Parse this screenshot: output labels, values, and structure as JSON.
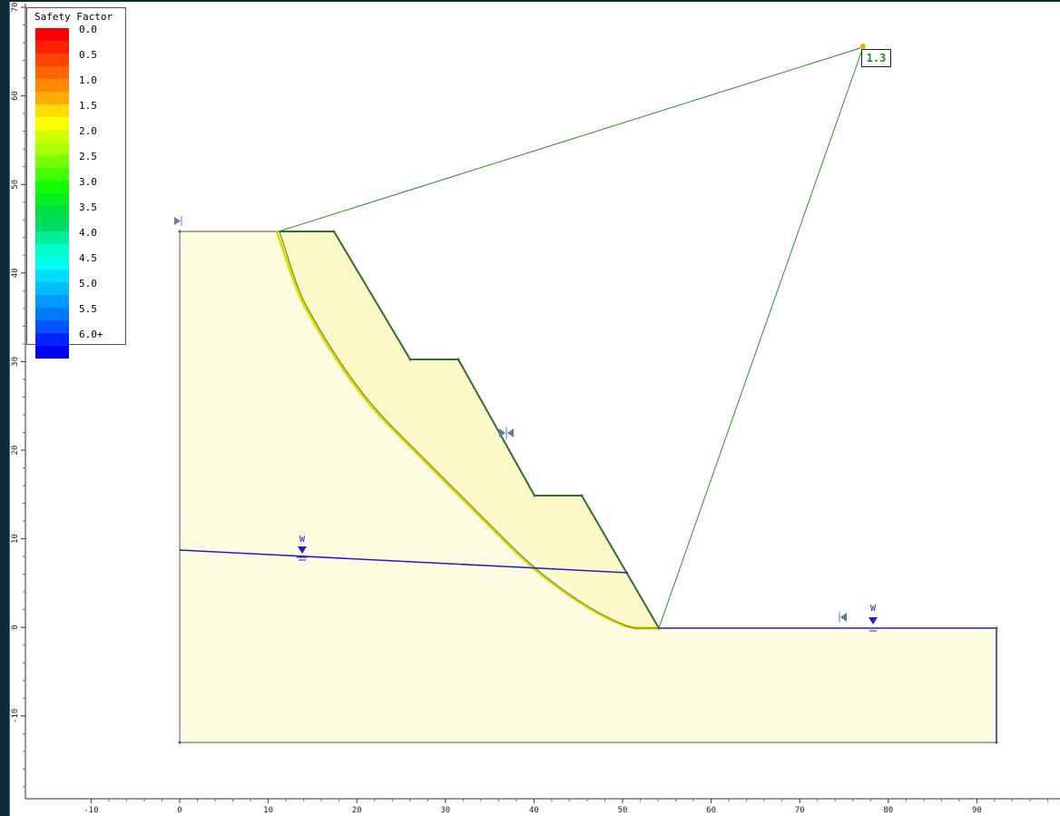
{
  "legend": {
    "title": "Safety Factor",
    "entries": [
      {
        "label": "0.0",
        "colors": [
          "#ff0000",
          "#ff2200"
        ]
      },
      {
        "label": "0.5",
        "colors": [
          "#ff4400",
          "#ff6600"
        ]
      },
      {
        "label": "1.0",
        "colors": [
          "#ff8800",
          "#ffaa00"
        ]
      },
      {
        "label": "1.5",
        "colors": [
          "#ffdd00",
          "#ffff00"
        ]
      },
      {
        "label": "2.0",
        "colors": [
          "#ccff00",
          "#aaff00"
        ]
      },
      {
        "label": "2.5",
        "colors": [
          "#77ff00",
          "#44ff00"
        ]
      },
      {
        "label": "3.0",
        "colors": [
          "#11ff00",
          "#00ee22"
        ]
      },
      {
        "label": "3.5",
        "colors": [
          "#00dd44",
          "#00dd66"
        ]
      },
      {
        "label": "4.0",
        "colors": [
          "#00ee99",
          "#00ffcc"
        ]
      },
      {
        "label": "4.5",
        "colors": [
          "#00ffee",
          "#00ddff"
        ]
      },
      {
        "label": "5.0",
        "colors": [
          "#00bbff",
          "#0099ff"
        ]
      },
      {
        "label": "5.5",
        "colors": [
          "#0077ff",
          "#0055ff"
        ]
      },
      {
        "label": "6.0+",
        "colors": [
          "#0022ff",
          "#0000ff"
        ]
      }
    ]
  },
  "model": {
    "critical_fs": "1.3",
    "water_symbol": "W",
    "colors": {
      "material_fill": "#fdfbe0",
      "slope_line": "#2e6e2e",
      "slip_line": "#e8d400",
      "water_line": "#2020cc",
      "fs_text": "#1a8a1a"
    }
  },
  "axes": {
    "x_ticks": [
      "-10",
      "0",
      "10",
      "20",
      "30",
      "40",
      "50",
      "60",
      "70",
      "80",
      "90",
      "10"
    ],
    "y_ticks": [
      "70",
      "60",
      "50",
      "40",
      "30",
      "20",
      "10",
      "0",
      "-10"
    ]
  }
}
